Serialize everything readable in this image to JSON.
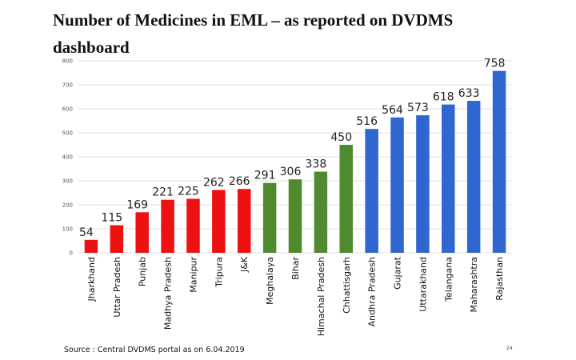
{
  "header": {
    "title": "Number of Medicines in EML – as reported on DVDMS dashboard"
  },
  "chart_data": {
    "type": "bar",
    "title": "Number of Medicines in EML – as reported on DVDMS dashboard",
    "xlabel": "",
    "ylabel": "",
    "ylim": [
      0,
      800
    ],
    "yticks": [
      0,
      100,
      200,
      300,
      400,
      500,
      600,
      700,
      800
    ],
    "grid": true,
    "categories": [
      "Jharkhand",
      "Uttar Pradesh",
      "Punjab",
      "Madhya Pradesh",
      "Manipur",
      "Tripura",
      "J&K",
      "Meghalaya",
      "Bihar",
      "Himachal Pradesh",
      "Chhattisgarh",
      "Andhra Pradesh",
      "Gujarat",
      "Uttarakhand",
      "Telangana",
      "Maharashtra",
      "Rajasthan"
    ],
    "values": [
      54,
      115,
      169,
      221,
      225,
      262,
      266,
      291,
      306,
      338,
      450,
      516,
      564,
      573,
      618,
      633,
      758
    ],
    "colors": [
      "#ee1111",
      "#ee1111",
      "#ee1111",
      "#ee1111",
      "#ee1111",
      "#ee1111",
      "#ee1111",
      "#4f8a2e",
      "#4f8a2e",
      "#4f8a2e",
      "#4f8a2e",
      "#2f66d0",
      "#2f66d0",
      "#2f66d0",
      "#2f66d0",
      "#2f66d0",
      "#2f66d0"
    ]
  },
  "footer": {
    "source": "Source : Central DVDMS portal as on 6.04.2019",
    "page_number": "24"
  }
}
